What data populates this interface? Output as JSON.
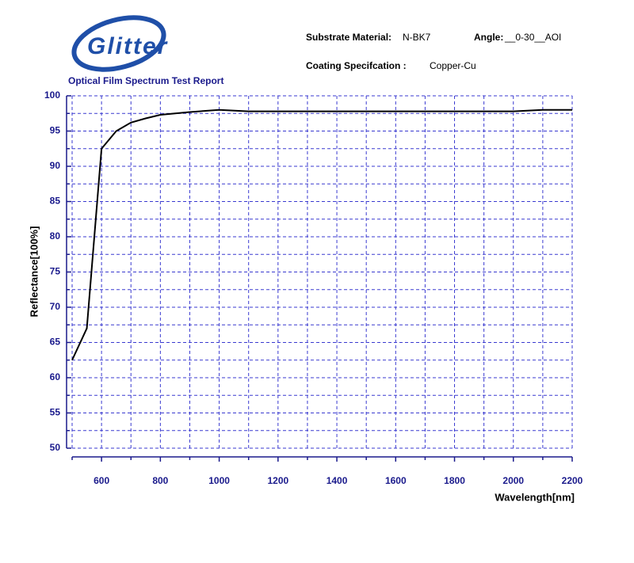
{
  "header": {
    "logo": "Glitter",
    "report_title": "Optical Film Spectrum Test Report",
    "substrate_label": "Substrate Material:",
    "substrate_value": "N-BK7",
    "angle_label": "Angle:",
    "angle_value": "__0-30__AOI",
    "coating_label": "Coating Specifcation :",
    "coating_value": "Copper-Cu"
  },
  "chart_data": {
    "type": "line",
    "x_label": "Wavelength[nm]",
    "y_label": "Reflectance[100%]",
    "x": [
      500,
      550,
      600,
      650,
      700,
      750,
      800,
      900,
      1000,
      1100,
      1500,
      2000,
      2100,
      2200
    ],
    "values": [
      62.5,
      67,
      92.5,
      95,
      96.2,
      96.8,
      97.3,
      97.7,
      98.0,
      97.8,
      97.8,
      97.8,
      98.0,
      98.0
    ],
    "color": "#000000",
    "xlim": [
      500,
      2200
    ],
    "xticks": [
      600,
      800,
      1000,
      1200,
      1400,
      1600,
      1800,
      2000,
      2200
    ],
    "x_minor_ticks": [
      500,
      700,
      900,
      1100,
      1300,
      1500,
      1700,
      1900,
      2100
    ],
    "ylim": [
      50,
      100
    ],
    "yticks": [
      50,
      55,
      60,
      65,
      70,
      75,
      80,
      85,
      90,
      95,
      100
    ],
    "y_minor_ticks": [
      52.5,
      57.5,
      62.5,
      67.5,
      72.5,
      77.5,
      82.5,
      87.5,
      92.5,
      97.5
    ],
    "grid": true
  }
}
